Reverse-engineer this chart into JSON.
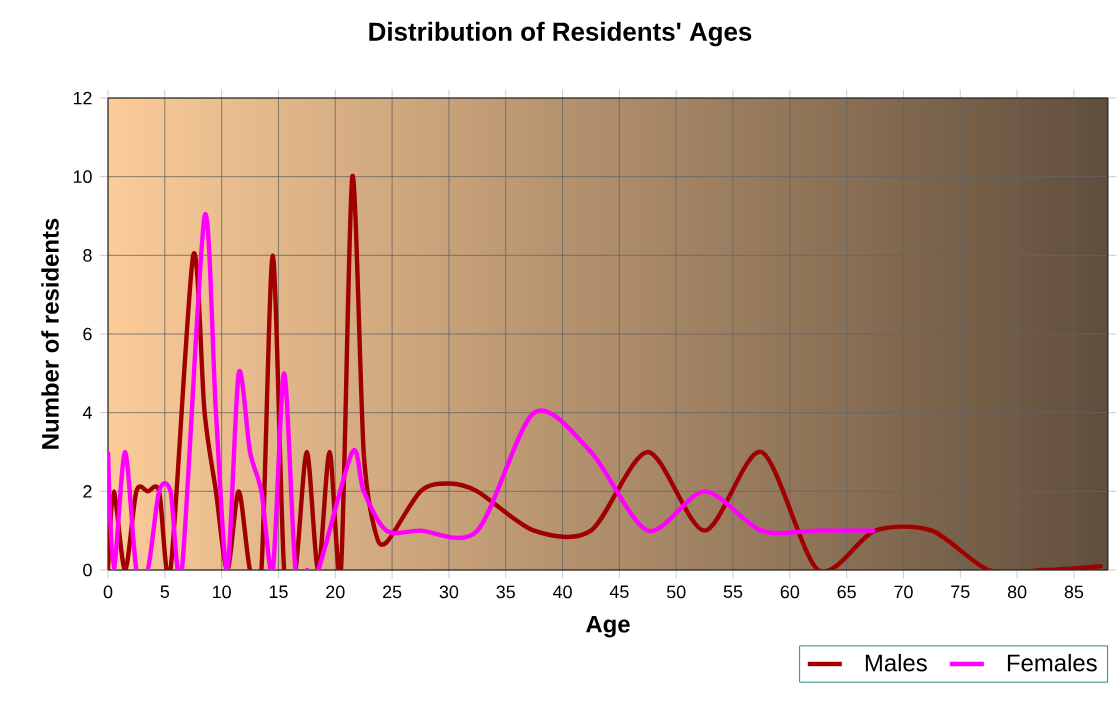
{
  "chart_data": {
    "type": "line",
    "title": "Distribution of Residents' Ages",
    "xlabel": "Age",
    "ylabel": "Number of residents",
    "xlim": [
      0,
      88
    ],
    "ylim": [
      0,
      12
    ],
    "xticks": [
      0,
      5,
      10,
      15,
      20,
      25,
      30,
      35,
      40,
      45,
      50,
      55,
      60,
      65,
      70,
      75,
      80,
      85
    ],
    "yticks": [
      0,
      2,
      4,
      6,
      8,
      10,
      12
    ],
    "grid": true,
    "legend": "bottom",
    "series": [
      {
        "name": "Males",
        "color": "#a00000",
        "x": [
          0,
          0.5,
          1.5,
          2.5,
          3.5,
          4.5,
          5.5,
          7.5,
          8.5,
          9.5,
          10.5,
          11.5,
          12.5,
          13.5,
          14.5,
          15.5,
          16.5,
          17.5,
          18.5,
          19.5,
          20.5,
          21.5,
          22.5,
          23.5,
          24.5,
          27.5,
          30,
          32.5,
          37.5,
          42.5,
          47.5,
          52.5,
          57.5,
          62.5,
          67.5,
          72.5,
          77.5,
          82.5,
          87.5
        ],
        "values": [
          0,
          2,
          0,
          2,
          2,
          2,
          0,
          8,
          4,
          2,
          0,
          2,
          0,
          0,
          8,
          0,
          0,
          3,
          0,
          3,
          0,
          10,
          3,
          1,
          0.7,
          2,
          2.2,
          2,
          1,
          1,
          3,
          1,
          3,
          0,
          1,
          1,
          0,
          0,
          0.1
        ]
      },
      {
        "name": "Females",
        "color": "#ff00ff",
        "x": [
          0,
          0.5,
          1.5,
          2.5,
          3.5,
          4.5,
          5.5,
          6.5,
          8.5,
          9.5,
          10.5,
          11.5,
          12.5,
          13.5,
          14.5,
          15.5,
          16.5,
          17.5,
          18.5,
          21.5,
          22.5,
          24.5,
          27.5,
          32.5,
          37.5,
          42.5,
          47.5,
          52.5,
          57.5,
          62.5,
          67.5
        ],
        "values": [
          3,
          0,
          3,
          0,
          0,
          2,
          2,
          0,
          9,
          4,
          0,
          5,
          3,
          2,
          0,
          5,
          0,
          0,
          0,
          3,
          2,
          1,
          1,
          1,
          4,
          3,
          1,
          2,
          1,
          1,
          1
        ]
      }
    ]
  }
}
